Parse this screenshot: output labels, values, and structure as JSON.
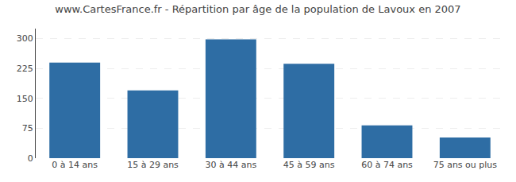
{
  "chart_data": {
    "type": "bar",
    "title": "www.CartesFrance.fr - Répartition par âge de la population de Lavoux en 2007",
    "categories": [
      "0 à 14 ans",
      "15 à 29 ans",
      "30 à 44 ans",
      "45 à 59 ans",
      "60 à 74 ans",
      "75 ans ou plus"
    ],
    "values": [
      240,
      170,
      298,
      237,
      82,
      52
    ],
    "color": "#2e6da4",
    "ylim": [
      0,
      325
    ],
    "yticks": [
      0,
      75,
      150,
      225,
      300
    ],
    "grid": true
  }
}
